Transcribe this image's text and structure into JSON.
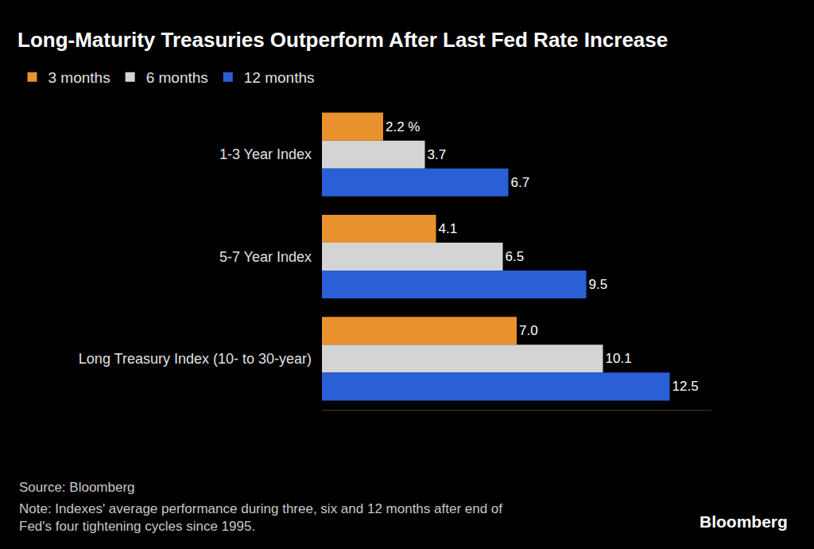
{
  "chart_data": {
    "type": "bar",
    "orientation": "horizontal",
    "title": "Long-Maturity Treasuries Outperform After Last Fed Rate Increase",
    "categories": [
      "1-3 Year Index",
      "5-7 Year Index",
      "Long Treasury Index (10- to 30-year)"
    ],
    "series": [
      {
        "name": "3 months",
        "color": "#e8912d",
        "values": [
          2.2,
          4.1,
          7.0
        ],
        "value_labels": [
          "2.2 %",
          "4.1",
          "7.0"
        ]
      },
      {
        "name": "6 months",
        "color": "#d4d4d4",
        "values": [
          3.7,
          6.5,
          10.1
        ]
      },
      {
        "name": "12 months",
        "color": "#2a5fd6",
        "values": [
          6.7,
          9.5,
          12.5
        ]
      }
    ],
    "xlim": [
      0,
      14
    ],
    "xticks": [],
    "grid": false,
    "data_labels": true,
    "tick_labels": "y",
    "legend": "top left",
    "annotations": [
      {
        "text": "Source: Bloomberg"
      },
      {
        "text": "Note: Indexes' average performance during three, six and 12 months after end of\nFed's four tightening cycles since 1995."
      },
      {
        "text": "Bloomberg"
      }
    ]
  }
}
